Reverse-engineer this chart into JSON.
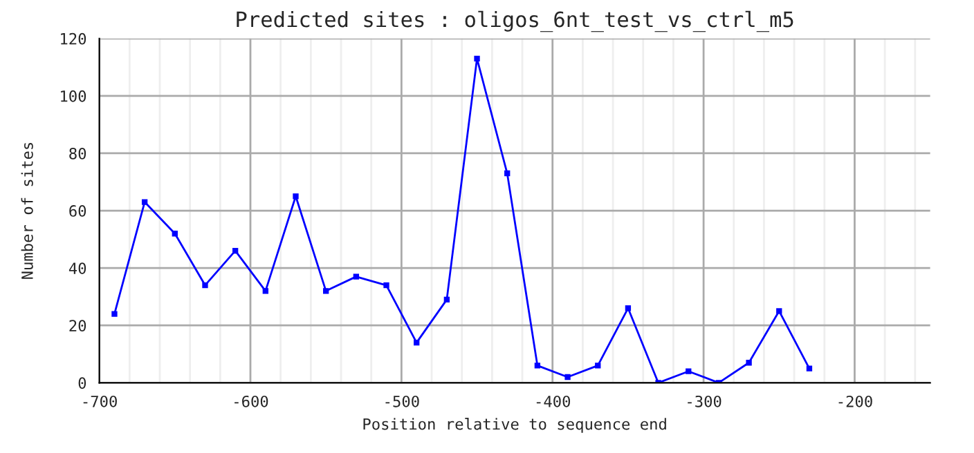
{
  "chart_data": {
    "type": "line",
    "title": "Predicted sites : oligos_6nt_test_vs_ctrl_m5",
    "xlabel": "Position relative to sequence end",
    "ylabel": "Number of sites",
    "x": [
      -690,
      -670,
      -650,
      -630,
      -610,
      -590,
      -570,
      -550,
      -530,
      -510,
      -490,
      -470,
      -450,
      -430,
      -410,
      -390,
      -370,
      -350,
      -330,
      -310,
      -290,
      -270,
      -250,
      -230
    ],
    "series": [
      {
        "color": "#0000ff",
        "values": [
          24,
          63,
          52,
          34,
          46,
          32,
          65,
          32,
          37,
          34,
          14,
          29,
          113,
          73,
          6,
          2,
          6,
          26,
          0,
          4,
          0,
          7,
          25,
          5
        ]
      }
    ],
    "xlim": [
      -700,
      -150
    ],
    "xticks": [
      -700,
      -600,
      -500,
      -400,
      -300,
      -200
    ],
    "ylim": [
      0,
      120
    ],
    "yticks": [
      0,
      20,
      40,
      60,
      80,
      100,
      120
    ],
    "grid": true,
    "marker": "square",
    "line_style": "solid",
    "legend": false
  }
}
